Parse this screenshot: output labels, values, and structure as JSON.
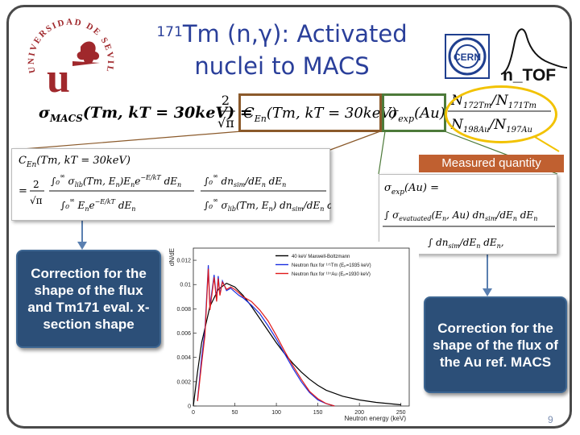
{
  "title": {
    "sup": "171",
    "line1_rest": "Tm (n,γ): Activated",
    "line2": "nuclei to MACS"
  },
  "measured_label": "Measured quantity",
  "callout_left": "Correction for the shape of the flux and Tm171 eval. x-section shape",
  "callout_right": "Correction for the shape of the flux  of the Au ref. MACS",
  "page_number": "9",
  "colors": {
    "title": "#2a3f9a",
    "callout_bg": "#2c4f78",
    "brown_box": "#8b5a2b",
    "green_box": "#4d7a3a",
    "yellow_ellipse": "#f2c200",
    "measured_bg": "#c06030",
    "arrow": "#5a7fb0"
  },
  "logos": {
    "left": "universidad-de-sevilla-seal",
    "cern": "cern-logo",
    "ntof": "ntof-logo"
  },
  "logo_text": {
    "university": "UNIVERSIDAD DE SEVILLA",
    "cern": "CERN",
    "ntof": "n_TOF"
  },
  "chart_data": {
    "type": "line",
    "xlabel": "Neutron energy (keV)",
    "ylabel": "dN/dE",
    "xlim": [
      0,
      260
    ],
    "ylim": [
      0,
      0.013
    ],
    "xticks": [
      0,
      50,
      100,
      150,
      200,
      250
    ],
    "yticks": [
      0,
      0.002,
      0.004,
      0.006,
      0.008,
      0.01,
      0.012
    ],
    "ytick_labels": [
      "0",
      "0.002",
      "0.004",
      "0.006",
      "0.008",
      "0.01",
      "0.012"
    ],
    "legend_position": "top-right",
    "series": [
      {
        "name": "40 keV Maxwell-Boltzmann",
        "color": "#000000",
        "x": [
          0,
          5,
          10,
          20,
          30,
          40,
          50,
          60,
          70,
          80,
          90,
          100,
          110,
          120,
          130,
          140,
          150,
          160,
          180,
          200,
          220,
          250
        ],
        "y": [
          0,
          0.0028,
          0.0052,
          0.0082,
          0.0096,
          0.0101,
          0.0098,
          0.0091,
          0.0082,
          0.0072,
          0.0062,
          0.0052,
          0.0043,
          0.0035,
          0.0028,
          0.0022,
          0.0017,
          0.0013,
          0.0008,
          0.0005,
          0.0003,
          0.0001
        ]
      },
      {
        "name": "Neutron flux for ¹⁷¹Tm (Eₚ=1935 keV)",
        "color": "#1a2ee0",
        "x": [
          5,
          10,
          14,
          18,
          20,
          25,
          28,
          30,
          32,
          35,
          40,
          45,
          50,
          55,
          60,
          70,
          80,
          90,
          100,
          110,
          120,
          130,
          140,
          150,
          160,
          170
        ],
        "y": [
          0.0005,
          0.004,
          0.0062,
          0.0116,
          0.0082,
          0.0108,
          0.0088,
          0.0107,
          0.0092,
          0.0103,
          0.0095,
          0.0097,
          0.0094,
          0.0091,
          0.0089,
          0.0083,
          0.0076,
          0.0066,
          0.0055,
          0.0043,
          0.0031,
          0.002,
          0.0011,
          0.0005,
          0.0002,
          0.0
        ]
      },
      {
        "name": "Neutron flux for ¹⁹⁷Au (Eₚ=1930 keV)",
        "color": "#e01a1a",
        "x": [
          5,
          10,
          14,
          18,
          20,
          25,
          28,
          30,
          32,
          35,
          40,
          45,
          50,
          55,
          60,
          70,
          80,
          90,
          100,
          110,
          120,
          130,
          140,
          150,
          160,
          170
        ],
        "y": [
          0.0004,
          0.0035,
          0.0058,
          0.0113,
          0.0079,
          0.0106,
          0.0086,
          0.0105,
          0.0091,
          0.0102,
          0.0096,
          0.0098,
          0.0096,
          0.0093,
          0.009,
          0.0086,
          0.0079,
          0.007,
          0.0058,
          0.0045,
          0.0033,
          0.0022,
          0.0012,
          0.0006,
          0.0002,
          0.0
        ]
      }
    ]
  }
}
